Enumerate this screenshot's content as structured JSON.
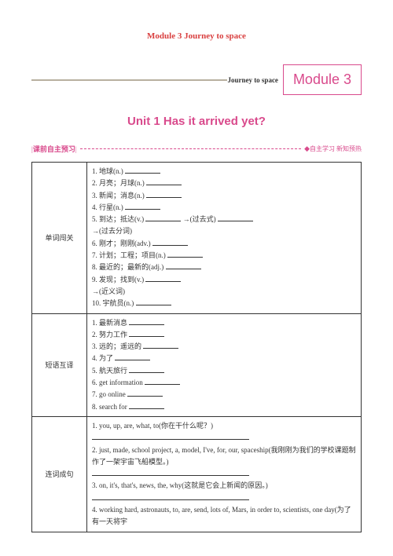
{
  "module_title": "Module 3 Journey to space",
  "header": {
    "journey_text": "Journey to space",
    "module_box": "Module 3"
  },
  "unit_title": "Unit 1  Has it arrived yet?",
  "section": {
    "label": "课前自主预习",
    "right": "自主学习  新知预热"
  },
  "rows": [
    {
      "label": "单词闯关",
      "items": [
        "1. 地球(n.) ",
        "2. 月亮；月球(n.) ",
        "3. 新闻；消息(n.) ",
        "4. 行星(n.) ",
        "5. 到达；抵达(v.) _______ →(过去式) _______",
        "→(过去分词)",
        "6. 刚才；刚刚(adv.) ",
        "7. 计划；工程；项目(n.) ",
        "8. 最近的；最新的(adj.) ",
        "9. 发现；找到(v.) ",
        "→(近义词)",
        "10. 宇航员(n.) "
      ]
    },
    {
      "label": "短语互译",
      "items": [
        "1. 最新消息 ",
        "2. 努力工作 ",
        "3. 远的；遥远的 ",
        "4. 为了 ",
        "5. 航天旅行 ",
        "6. get information ",
        "7. go online ",
        "8. search for "
      ]
    },
    {
      "label": "连词成句",
      "items": [
        "1. you, up, are, what, to(你在干什么呢？)",
        "LONGBLANK",
        "2. just, made, school project, a, model, I've, for, our, spaceship(我刚刚为我们的学校课题制作了一架宇宙飞船模型。)",
        "LONGBLANK",
        "3. on, it's, that's, news, the, why(这就是它会上新闻的原因。)",
        "LONGBLANK",
        "4. working hard, astronauts, to, are, send, lots of, Mars, in order to, scientists, one day(为了有一天将宇"
      ]
    }
  ]
}
